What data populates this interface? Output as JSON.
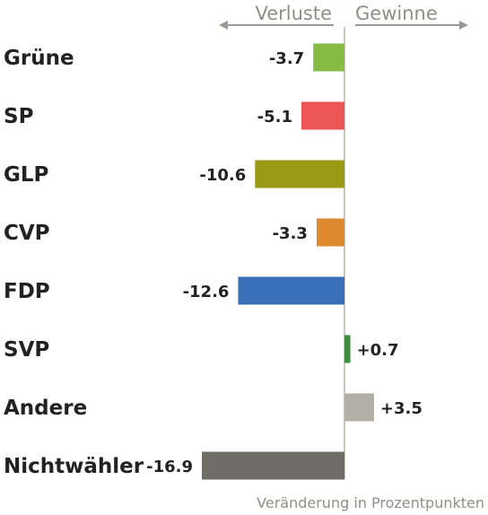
{
  "chart_data": {
    "type": "bar",
    "orientation": "horizontal",
    "categories": [
      "Grüne",
      "SP",
      "GLP",
      "CVP",
      "FDP",
      "SVP",
      "Andere",
      "Nichtwähler"
    ],
    "values": [
      -3.7,
      -5.1,
      -10.6,
      -3.3,
      -12.6,
      0.7,
      3.5,
      -16.9
    ],
    "value_labels": [
      "-3.7",
      "-5.1",
      "-10.6",
      "-3.3",
      "-12.6",
      "+0.7",
      "+3.5",
      "-16.9"
    ],
    "colors": [
      "#86bb45",
      "#ee5555",
      "#9a9a14",
      "#dd8a30",
      "#3a70b8",
      "#3f8c3f",
      "#b0b0a4",
      "#6e6e66"
    ],
    "negative_header": "Verluste",
    "positive_header": "Gewinne",
    "footer": "Veränderung in Prozentpunkten",
    "xlim": [
      -16.9,
      5.0
    ],
    "legend": "none",
    "grid": false
  }
}
